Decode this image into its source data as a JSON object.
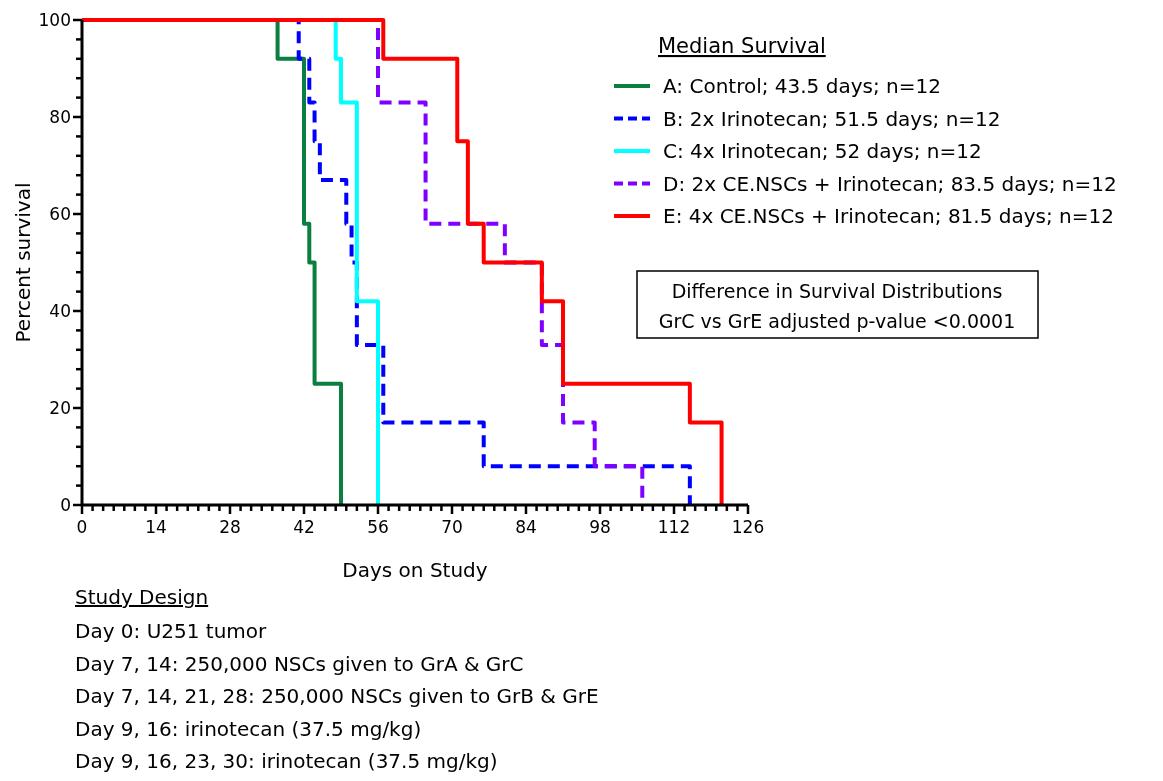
{
  "chart_data": {
    "type": "step",
    "xlabel": "Days on Study",
    "ylabel": "Percent survival",
    "legend_title": "Median Survival",
    "legend": "top right",
    "xlim": [
      0,
      126
    ],
    "ylim": [
      0,
      100
    ],
    "xticks": [
      0,
      {
        "value": 2,
        "label": null
      },
      {
        "value": 4,
        "label": null
      },
      {
        "value": 6,
        "label": null
      },
      {
        "value": 8,
        "label": null
      },
      {
        "value": 10,
        "label": null
      },
      {
        "value": 12,
        "label": null
      },
      14,
      {
        "value": 16,
        "label": null
      },
      {
        "value": 18,
        "label": null
      },
      {
        "value": 20,
        "label": null
      },
      {
        "value": 22,
        "label": null
      },
      {
        "value": 24,
        "label": null
      },
      {
        "value": 26,
        "label": null
      },
      28,
      {
        "value": 30,
        "label": null
      },
      {
        "value": 32,
        "label": null
      },
      {
        "value": 34,
        "label": null
      },
      {
        "value": 36,
        "label": null
      },
      {
        "value": 38,
        "label": null
      },
      {
        "value": 40,
        "label": null
      },
      42,
      {
        "value": 44,
        "label": null
      },
      {
        "value": 46,
        "label": null
      },
      {
        "value": 48,
        "label": null
      },
      {
        "value": 50,
        "label": null
      },
      {
        "value": 52,
        "label": null
      },
      {
        "value": 54,
        "label": null
      },
      56,
      {
        "value": 58,
        "label": null
      },
      {
        "value": 60,
        "label": null
      },
      {
        "value": 62,
        "label": null
      },
      {
        "value": 64,
        "label": null
      },
      {
        "value": 66,
        "label": null
      },
      {
        "value": 68,
        "label": null
      },
      70,
      {
        "value": 72,
        "label": null
      },
      {
        "value": 74,
        "label": null
      },
      {
        "value": 76,
        "label": null
      },
      {
        "value": 78,
        "label": null
      },
      {
        "value": 80,
        "label": null
      },
      {
        "value": 82,
        "label": null
      },
      84,
      {
        "value": 86,
        "label": null
      },
      {
        "value": 88,
        "label": null
      },
      {
        "value": 90,
        "label": null
      },
      {
        "value": 92,
        "label": null
      },
      {
        "value": 94,
        "label": null
      },
      {
        "value": 96,
        "label": null
      },
      98,
      {
        "value": 100,
        "label": null
      },
      {
        "value": 102,
        "label": null
      },
      {
        "value": 104,
        "label": null
      },
      {
        "value": 106,
        "label": null
      },
      {
        "value": 108,
        "label": null
      },
      {
        "value": 110,
        "label": null
      },
      112,
      {
        "value": 114,
        "label": null
      },
      {
        "value": 116,
        "label": null
      },
      {
        "value": 118,
        "label": null
      },
      {
        "value": 120,
        "label": null
      },
      {
        "value": 122,
        "label": null
      },
      {
        "value": 124,
        "label": null
      },
      126
    ],
    "yticks": [
      0,
      {
        "value": 4,
        "label": null
      },
      {
        "value": 8,
        "label": null
      },
      {
        "value": 12,
        "label": null
      },
      {
        "value": 16,
        "label": null
      },
      20,
      {
        "value": 24,
        "label": null
      },
      {
        "value": 28,
        "label": null
      },
      {
        "value": 32,
        "label": null
      },
      {
        "value": 36,
        "label": null
      },
      40,
      {
        "value": 44,
        "label": null
      },
      {
        "value": 48,
        "label": null
      },
      {
        "value": 52,
        "label": null
      },
      {
        "value": 56,
        "label": null
      },
      60,
      {
        "value": 64,
        "label": null
      },
      {
        "value": 68,
        "label": null
      },
      {
        "value": 72,
        "label": null
      },
      {
        "value": 76,
        "label": null
      },
      80,
      {
        "value": 84,
        "label": null
      },
      {
        "value": 88,
        "label": null
      },
      {
        "value": 92,
        "label": null
      },
      {
        "value": 96,
        "label": null
      },
      100
    ],
    "series": [
      {
        "name": "A: Control; 43.5 days; n=12",
        "color": "#0b7f3f",
        "line_style": "solid",
        "x": [
          0,
          37,
          42,
          43,
          44,
          49
        ],
        "values": [
          100,
          92,
          58,
          50,
          25,
          0
        ]
      },
      {
        "name": "B: 2x Irinotecan; 51.5 days; n=12",
        "color": "#0000ff",
        "line_style": "dashed",
        "x": [
          0,
          41,
          43,
          44,
          45,
          50,
          51,
          52,
          57,
          76,
          115
        ],
        "values": [
          100,
          92,
          83,
          75,
          67,
          58,
          50,
          33,
          17,
          8,
          0
        ]
      },
      {
        "name": "C: 4x Irinotecan; 52 days; n=12",
        "color": "#00ffff",
        "line_style": "solid",
        "x": [
          0,
          48,
          49,
          52,
          56
        ],
        "values": [
          100,
          92,
          83,
          42,
          0
        ]
      },
      {
        "name": "D: 2x CE.NSCs + Irinotecan; 83.5 days; n=12",
        "color": "#8000ff",
        "line_style": "dashed",
        "x": [
          0,
          56,
          65,
          80,
          87,
          91,
          97,
          106
        ],
        "values": [
          100,
          83,
          58,
          50,
          33,
          17,
          8,
          0
        ]
      },
      {
        "name": "E: 4x CE.NSCs + Irinotecan; 81.5 days; n=12",
        "color": "#ff0000",
        "line_style": "solid",
        "x": [
          0,
          57,
          71,
          73,
          76,
          87,
          91,
          115,
          121
        ],
        "values": [
          100,
          92,
          75,
          58,
          50,
          42,
          25,
          17,
          0
        ]
      }
    ],
    "annotations": [
      "Difference in Survival Distributions",
      "GrC vs GrE adjusted p-value <0.0001",
      "Study Design",
      "Day 0: U251 tumor",
      "Day 7, 14: 250,000 NSCs given to GrA & GrC",
      "Day 7, 14, 21, 28: 250,000 NSCs given to GrB & GrE",
      "Day 9, 16: irinotecan (37.5 mg/kg)",
      "Day 9, 16, 23, 30: irinotecan (37.5 mg/kg)"
    ]
  }
}
